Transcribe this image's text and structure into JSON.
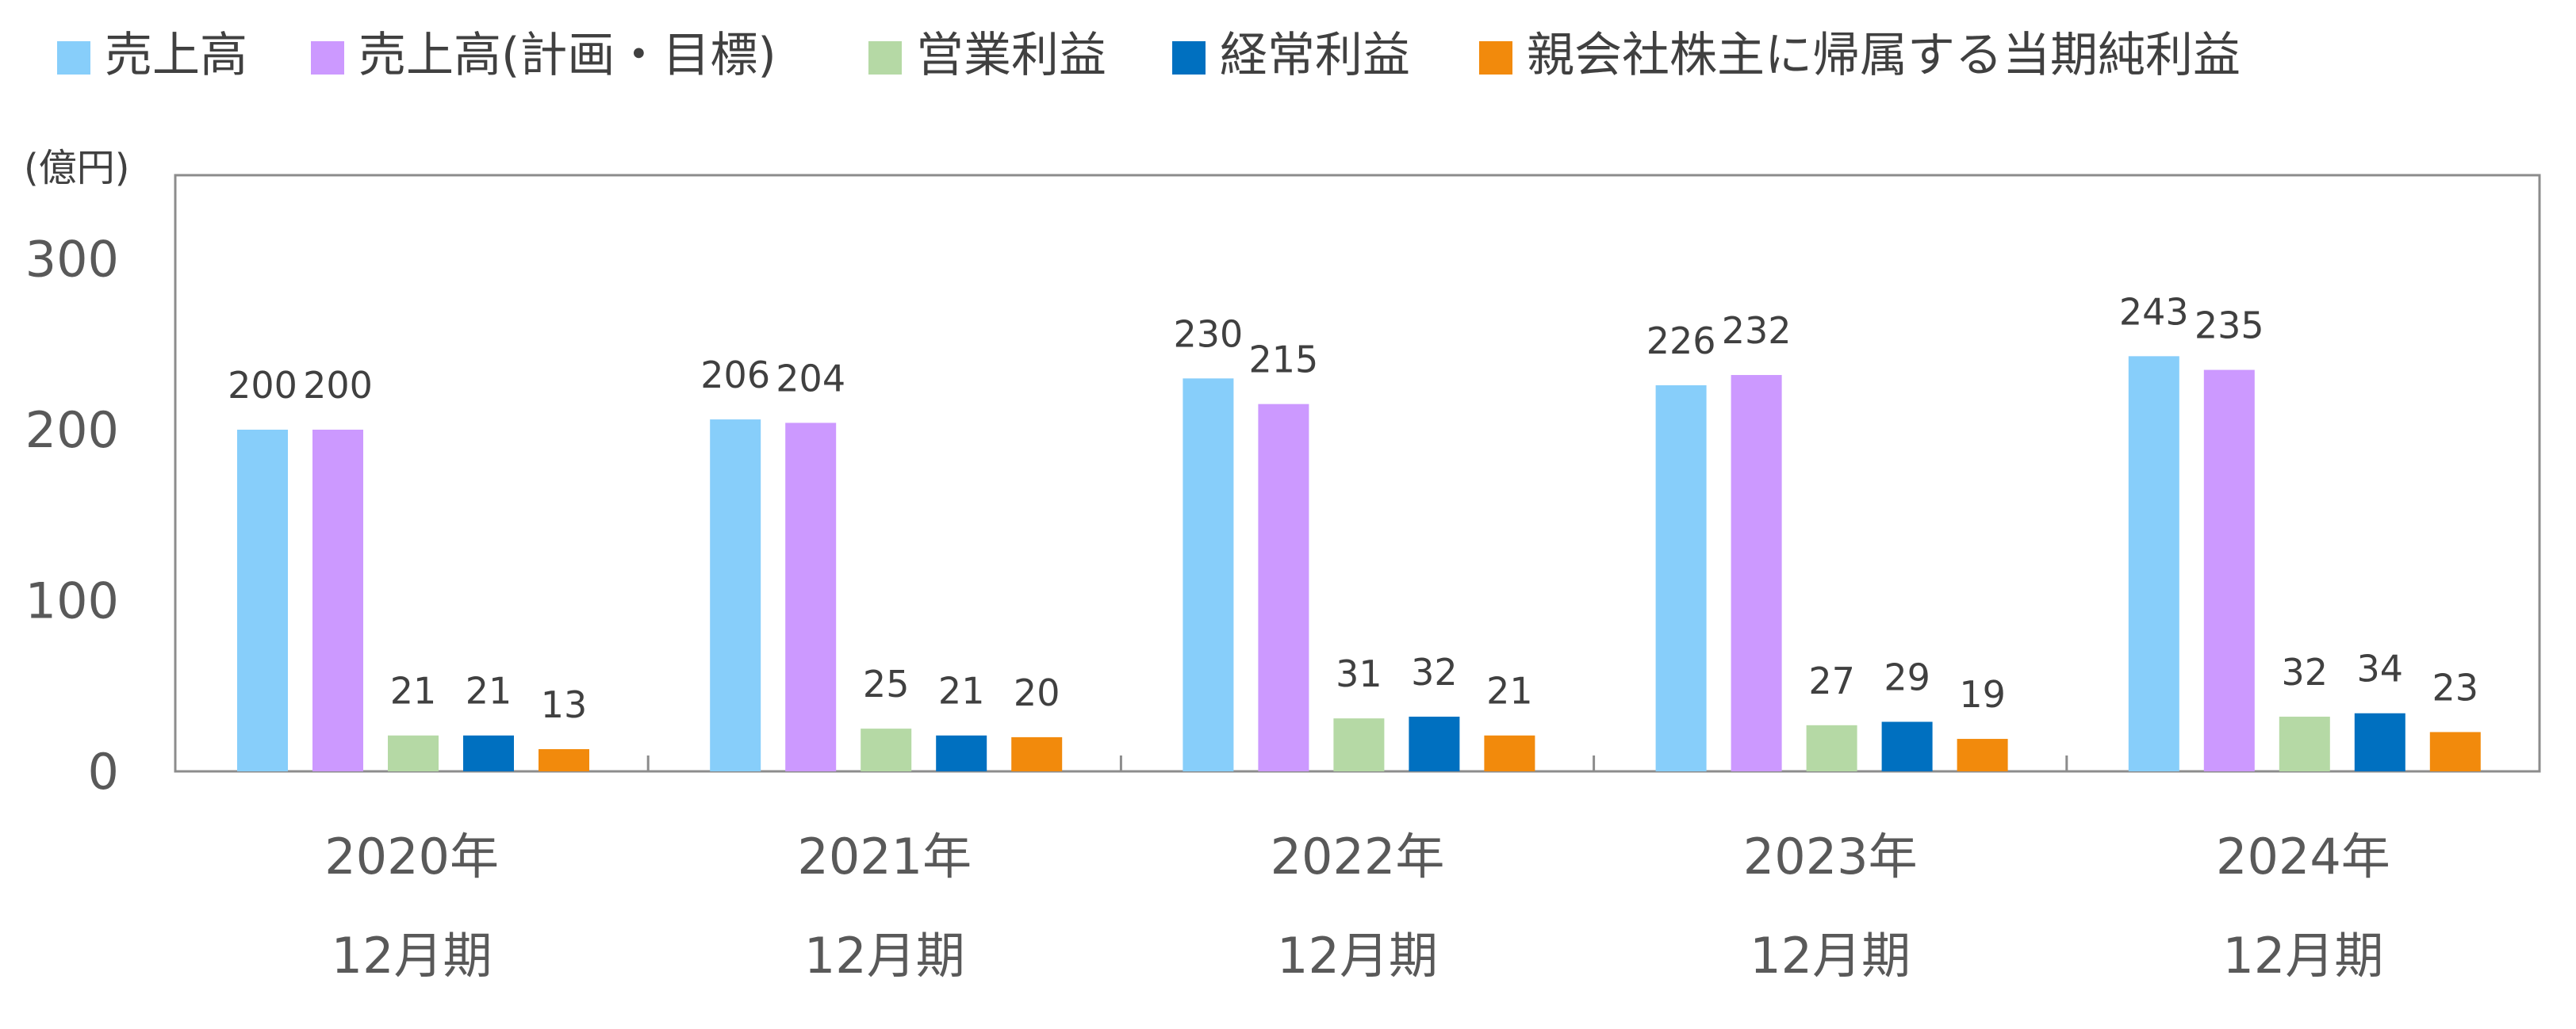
{
  "chart_data": {
    "type": "bar",
    "unit_label": "(億円)",
    "categories": [
      [
        "2020年",
        "12月期"
      ],
      [
        "2021年",
        "12月期"
      ],
      [
        "2022年",
        "12月期"
      ],
      [
        "2023年",
        "12月期"
      ],
      [
        "2024年",
        "12月期"
      ]
    ],
    "ylim": [
      0,
      350
    ],
    "yticks": [
      "0",
      "100",
      "200",
      "300"
    ],
    "grid": false,
    "legend_position": "top",
    "series": [
      {
        "name": "売上高",
        "color": "#87CEFA",
        "values": [
          200,
          206,
          230,
          226,
          243
        ]
      },
      {
        "name": "売上高(計画・目標)",
        "color": "#CC99FF",
        "values": [
          200,
          204,
          215,
          232,
          235
        ]
      },
      {
        "name": "営業利益",
        "color": "#B5D9A5",
        "values": [
          21,
          25,
          31,
          27,
          32
        ]
      },
      {
        "name": "経常利益",
        "color": "#0070C0",
        "values": [
          21,
          21,
          32,
          29,
          34
        ]
      },
      {
        "name": "親会社株主に帰属する当期純利益",
        "color": "#F28A0C",
        "values": [
          13,
          20,
          21,
          19,
          23
        ]
      }
    ]
  }
}
